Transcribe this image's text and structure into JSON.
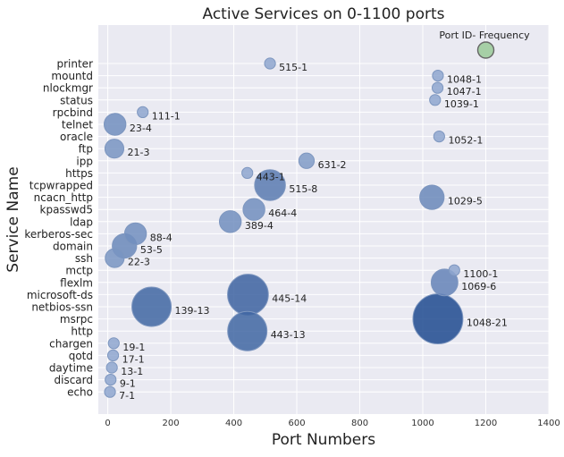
{
  "chart_data": {
    "type": "scatter",
    "title": "Active Services on 0-1100 ports",
    "xlabel": "Port Numbers",
    "ylabel": "Service Name",
    "xlim": [
      -30,
      1400
    ],
    "xticks": [
      0,
      200,
      400,
      600,
      800,
      1000,
      1200,
      1400
    ],
    "grid": true,
    "legend": {
      "label": "Port ID- Frequency",
      "placement": "top-right",
      "marker_value": 1200
    },
    "colors": {
      "background": "#EAEAF2",
      "grid": "#FFFFFF",
      "bubble_light": "#8EA6CF",
      "bubble_dark": "#1F4A8F",
      "legend_marker": "#A6CFA6"
    },
    "categories": [
      "echo",
      "discard",
      "daytime",
      "qotd",
      "chargen",
      "http",
      "msrpc",
      "netbios-ssn",
      "microsoft-ds",
      "flexlm",
      "mctp",
      "ssh",
      "domain",
      "kerberos-sec",
      "ldap",
      "kpasswd5",
      "ncacn_http",
      "tcpwrapped",
      "https",
      "ipp",
      "ftp",
      "oracle",
      "telnet",
      "rpcbind",
      "status",
      "nlockmgr",
      "mountd",
      "printer"
    ],
    "points": [
      {
        "service": "echo",
        "port": 7,
        "frequency": 1,
        "label": "7-1"
      },
      {
        "service": "discard",
        "port": 9,
        "frequency": 1,
        "label": "9-1"
      },
      {
        "service": "daytime",
        "port": 13,
        "frequency": 1,
        "label": "13-1"
      },
      {
        "service": "qotd",
        "port": 17,
        "frequency": 1,
        "label": "17-1"
      },
      {
        "service": "chargen",
        "port": 19,
        "frequency": 1,
        "label": "19-1"
      },
      {
        "service": "http",
        "port": 443,
        "frequency": 13,
        "label": "443-13"
      },
      {
        "service": "msrpc",
        "port": 1048,
        "frequency": 21,
        "label": "1048-21"
      },
      {
        "service": "netbios-ssn",
        "port": 139,
        "frequency": 13,
        "label": "139-13"
      },
      {
        "service": "microsoft-ds",
        "port": 445,
        "frequency": 14,
        "label": "445-14"
      },
      {
        "service": "flexlm",
        "port": 1069,
        "frequency": 6,
        "label": "1069-6"
      },
      {
        "service": "mctp",
        "port": 1100,
        "frequency": 1,
        "label": "1100-1"
      },
      {
        "service": "ssh",
        "port": 22,
        "frequency": 3,
        "label": "22-3"
      },
      {
        "service": "domain",
        "port": 53,
        "frequency": 5,
        "label": "53-5"
      },
      {
        "service": "kerberos-sec",
        "port": 88,
        "frequency": 4,
        "label": "88-4"
      },
      {
        "service": "ldap",
        "port": 389,
        "frequency": 4,
        "label": "389-4"
      },
      {
        "service": "kpasswd5",
        "port": 464,
        "frequency": 4,
        "label": "464-4"
      },
      {
        "service": "ncacn_http",
        "port": 1029,
        "frequency": 5,
        "label": "1029-5"
      },
      {
        "service": "tcpwrapped",
        "port": 515,
        "frequency": 8,
        "label": "515-8"
      },
      {
        "service": "https",
        "port": 443,
        "frequency": 1,
        "label": "443-1"
      },
      {
        "service": "ipp",
        "port": 631,
        "frequency": 2,
        "label": "631-2"
      },
      {
        "service": "ftp",
        "port": 21,
        "frequency": 3,
        "label": "21-3"
      },
      {
        "service": "oracle",
        "port": 1052,
        "frequency": 1,
        "label": "1052-1"
      },
      {
        "service": "telnet",
        "port": 23,
        "frequency": 4,
        "label": "23-4"
      },
      {
        "service": "rpcbind",
        "port": 111,
        "frequency": 1,
        "label": "111-1"
      },
      {
        "service": "status",
        "port": 1039,
        "frequency": 1,
        "label": "1039-1"
      },
      {
        "service": "nlockmgr",
        "port": 1047,
        "frequency": 1,
        "label": "1047-1"
      },
      {
        "service": "mountd",
        "port": 1048,
        "frequency": 1,
        "label": "1048-1"
      },
      {
        "service": "printer",
        "port": 515,
        "frequency": 1,
        "label": "515-1"
      }
    ]
  }
}
